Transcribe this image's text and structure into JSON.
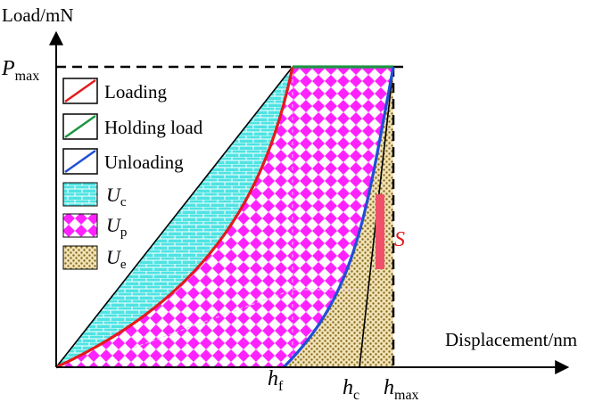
{
  "axes": {
    "y_label": "Load/mN",
    "x_label": "Displacement/nm"
  },
  "marks": {
    "p_max": {
      "main": "P",
      "sub": "max"
    },
    "h_f": {
      "main": "h",
      "sub": "f"
    },
    "h_c": {
      "main": "h",
      "sub": "c"
    },
    "h_max": {
      "main": "h",
      "sub": "max"
    },
    "stiffness": "S"
  },
  "legend": {
    "items": [
      {
        "label": "Loading",
        "color": "#e41a1c"
      },
      {
        "label": "Holding load",
        "color": "#1a9641"
      },
      {
        "label": "Unloading",
        "color": "#1f4fd6"
      }
    ],
    "areas": [
      {
        "main": "U",
        "sub": "c",
        "fill": "#4fe3e3"
      },
      {
        "main": "U",
        "sub": "p",
        "fill": "#ff33ff"
      },
      {
        "main": "U",
        "sub": "e",
        "fill": "#c8a04a"
      }
    ]
  }
}
